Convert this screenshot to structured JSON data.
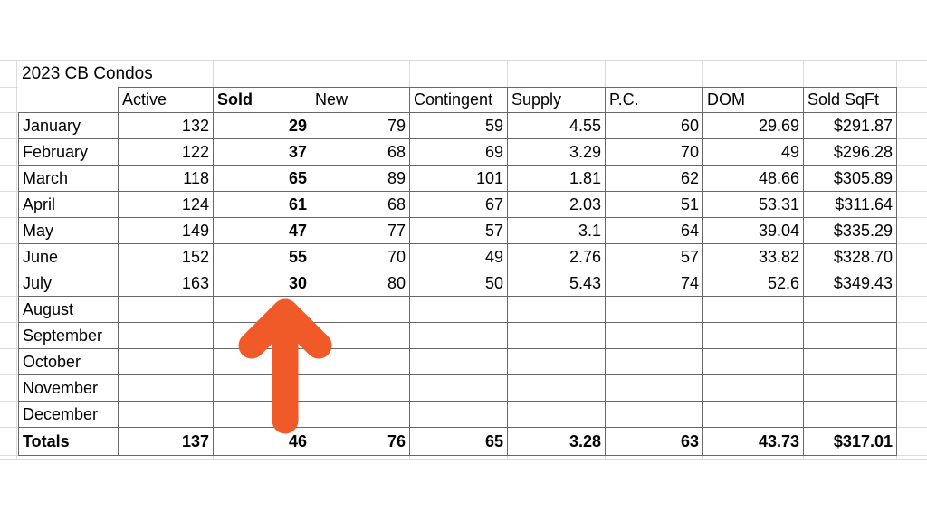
{
  "sheet": {
    "title": "2023 CB Condos",
    "columns": [
      "",
      "Active",
      "Sold",
      "New",
      "Contingent",
      "Supply",
      "P.C.",
      "DOM",
      "Sold SqFt"
    ],
    "rows": [
      {
        "month": "January",
        "values": [
          "132",
          "29",
          "79",
          "59",
          "4.55",
          "60",
          "29.69",
          "$291.87"
        ]
      },
      {
        "month": "February",
        "values": [
          "122",
          "37",
          "68",
          "69",
          "3.29",
          "70",
          "49",
          "$296.28"
        ]
      },
      {
        "month": "March",
        "values": [
          "118",
          "65",
          "89",
          "101",
          "1.81",
          "62",
          "48.66",
          "$305.89"
        ]
      },
      {
        "month": "April",
        "values": [
          "124",
          "61",
          "68",
          "67",
          "2.03",
          "51",
          "53.31",
          "$311.64"
        ]
      },
      {
        "month": "May",
        "values": [
          "149",
          "47",
          "77",
          "57",
          "3.1",
          "64",
          "39.04",
          "$335.29"
        ]
      },
      {
        "month": "June",
        "values": [
          "152",
          "55",
          "70",
          "49",
          "2.76",
          "57",
          "33.82",
          "$328.70"
        ]
      },
      {
        "month": "July",
        "values": [
          "163",
          "30",
          "80",
          "50",
          "5.43",
          "74",
          "52.6",
          "$349.43"
        ]
      },
      {
        "month": "August",
        "values": [
          "",
          "",
          "",
          "",
          "",
          "",
          "",
          ""
        ]
      },
      {
        "month": "September",
        "values": [
          "",
          "",
          "",
          "",
          "",
          "",
          "",
          ""
        ]
      },
      {
        "month": "October",
        "values": [
          "",
          "",
          "",
          "",
          "",
          "",
          "",
          ""
        ]
      },
      {
        "month": "November",
        "values": [
          "",
          "",
          "",
          "",
          "",
          "",
          "",
          ""
        ]
      },
      {
        "month": "December",
        "values": [
          "",
          "",
          "",
          "",
          "",
          "",
          "",
          ""
        ]
      }
    ],
    "totals": {
      "label": "Totals",
      "values": [
        "137",
        "46",
        "76",
        "65",
        "3.28",
        "63",
        "43.73",
        "$317.01"
      ]
    }
  },
  "annotation": {
    "arrow_icon": "up-arrow",
    "arrow_color": "#f05a28",
    "points_to_column": "Sold"
  }
}
